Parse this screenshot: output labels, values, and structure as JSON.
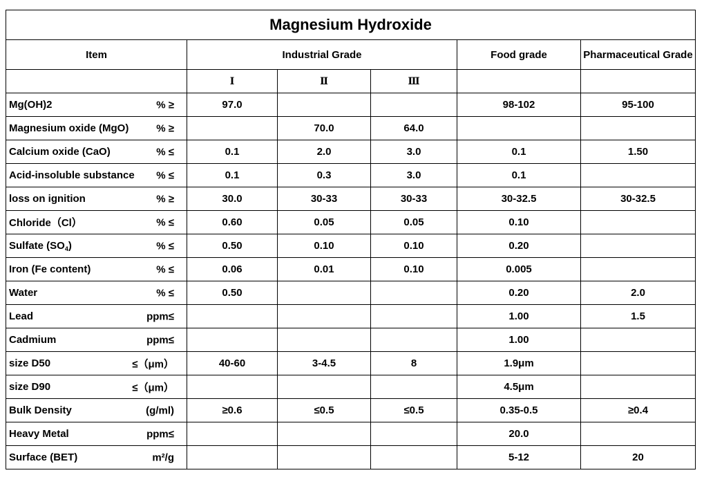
{
  "title": "Magnesium Hydroxide",
  "headers": {
    "item": "Item",
    "industrial": "Industrial Grade",
    "food": "Food grade",
    "pharma": "Pharmaceutical Grade",
    "grades": [
      "Ⅰ",
      "Ⅱ",
      "Ⅲ"
    ]
  },
  "rows": [
    {
      "name": "Mg(OH)2",
      "unit": "% ≥",
      "i": "97.0",
      "ii": "",
      "iii": "",
      "food": "98-102",
      "pharma": "95-100"
    },
    {
      "name": "Magnesium oxide (MgO)",
      "unit": "% ≥",
      "i": "",
      "ii": "70.0",
      "iii": "64.0",
      "food": "",
      "pharma": ""
    },
    {
      "name": "Calcium oxide (CaO)",
      "unit": "% ≤",
      "i": "0.1",
      "ii": "2.0",
      "iii": "3.0",
      "food": "0.1",
      "pharma": "1.50"
    },
    {
      "name": "Acid-insoluble substance",
      "unit": "% ≤",
      "i": "0.1",
      "ii": "0.3",
      "iii": "3.0",
      "food": "0.1",
      "pharma": ""
    },
    {
      "name": "loss on ignition",
      "unit": "% ≥",
      "i": "30.0",
      "ii": "30-33",
      "iii": "30-33",
      "food": "30-32.5",
      "pharma": "30-32.5"
    },
    {
      "name": "Chloride（Cl）",
      "unit": "% ≤",
      "i": "0.60",
      "ii": "0.05",
      "iii": "0.05",
      "food": "0.10",
      "pharma": ""
    },
    {
      "name_pre": "Sulfate (SO",
      "name_sub": "4",
      "name_post": ")",
      "unit": "% ≤",
      "i": "0.50",
      "ii": "0.10",
      "iii": "0.10",
      "food": "0.20",
      "pharma": ""
    },
    {
      "name": "Iron (Fe content)",
      "unit": "% ≤",
      "i": "0.06",
      "ii": "0.01",
      "iii": "0.10",
      "food": "0.005",
      "pharma": ""
    },
    {
      "name": "Water",
      "unit": "% ≤",
      "i": "0.50",
      "ii": "",
      "iii": "",
      "food": "0.20",
      "pharma": "2.0"
    },
    {
      "name": "Lead",
      "unit": "ppm≤",
      "i": "",
      "ii": "",
      "iii": "",
      "food": "1.00",
      "pharma": "1.5"
    },
    {
      "name": "Cadmium",
      "unit": "ppm≤",
      "i": "",
      "ii": "",
      "iii": "",
      "food": "1.00",
      "pharma": ""
    },
    {
      "name": "size D50",
      "unit": "≤（μm）",
      "i": "40-60",
      "ii": "3-4.5",
      "iii": "8",
      "food": "1.9μm",
      "pharma": ""
    },
    {
      "name": "size D90",
      "unit": "≤（μm）",
      "i": "",
      "ii": "",
      "iii": "",
      "food": "4.5μm",
      "pharma": ""
    },
    {
      "name": "Bulk Density",
      "unit": "(g/ml)",
      "i": "≥0.6",
      "ii": "≤0.5",
      "iii": "≤0.5",
      "food": "0.35-0.5",
      "pharma": "≥0.4"
    },
    {
      "name": "Heavy Metal",
      "unit": "ppm≤",
      "i": "",
      "ii": "",
      "iii": "",
      "food": "20.0",
      "pharma": ""
    },
    {
      "name": "Surface (BET)",
      "unit": "m²/g",
      "i": "",
      "ii": "",
      "iii": "",
      "food": "5-12",
      "pharma": "20"
    }
  ]
}
